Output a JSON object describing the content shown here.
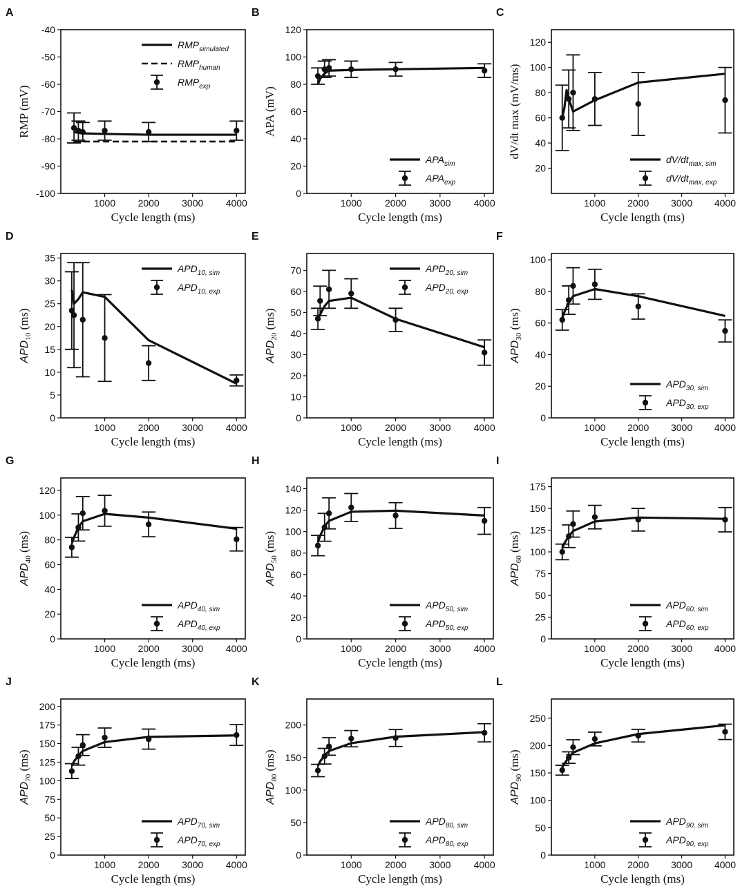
{
  "figure": {
    "title": "",
    "panel_count": 12
  },
  "chart_data": [
    {
      "panel": "A",
      "type": "line",
      "xlabel": "Cycle length (ms)",
      "ylabel": "RMP (mV)",
      "xlim": [
        0,
        4200
      ],
      "ylim": [
        -100,
        -40
      ],
      "xticks": [
        1000,
        2000,
        3000,
        4000
      ],
      "yticks": [
        -100,
        -90,
        -80,
        -70,
        -60,
        -50,
        -40
      ],
      "legend_position": "top-right",
      "series": [
        {
          "name": "RMP_simulated",
          "legend_main": "RMP",
          "legend_sub": "simulated",
          "style": "solid",
          "x": [
            300,
            400,
            500,
            1000,
            2000,
            4000
          ],
          "y": [
            -77.5,
            -77.8,
            -78.0,
            -78.2,
            -78.5,
            -78.5
          ]
        },
        {
          "name": "RMP_human",
          "legend_main": "RMP",
          "legend_sub": "human",
          "style": "dashed",
          "x": [
            300,
            4000
          ],
          "y": [
            -81,
            -81
          ]
        },
        {
          "name": "RMP_exp",
          "legend_main": "RMP",
          "legend_sub": "exp",
          "style": "errorbar",
          "x": [
            300,
            400,
            500,
            1000,
            2000,
            4000
          ],
          "y": [
            -76,
            -77,
            -77.5,
            -77,
            -77.5,
            -77
          ],
          "err": [
            5.5,
            3.5,
            3.5,
            3.5,
            3.5,
            3.5
          ]
        }
      ]
    },
    {
      "panel": "B",
      "type": "line",
      "xlabel": "Cycle length (ms)",
      "ylabel": "APA (mV)",
      "xlim": [
        0,
        4200
      ],
      "ylim": [
        0,
        120
      ],
      "xticks": [
        1000,
        2000,
        3000,
        4000
      ],
      "yticks": [
        0,
        20,
        40,
        60,
        80,
        100,
        120
      ],
      "legend_position": "bottom-right",
      "series": [
        {
          "name": "APA_sim",
          "legend_main": "APA",
          "legend_sub": "sim",
          "style": "solid",
          "x": [
            250,
            300,
            400,
            500,
            1000,
            2000,
            4000
          ],
          "y": [
            80,
            84,
            88,
            90,
            90.5,
            91,
            92
          ]
        },
        {
          "name": "APA_exp",
          "legend_main": "APA",
          "legend_sub": "exp",
          "style": "errorbar",
          "x": [
            250,
            400,
            500,
            1000,
            2000,
            4000
          ],
          "y": [
            86,
            91,
            92,
            91,
            91,
            90
          ],
          "err": [
            6,
            6,
            6,
            6,
            5,
            5
          ]
        }
      ]
    },
    {
      "panel": "C",
      "type": "line",
      "xlabel": "Cycle length (ms)",
      "ylabel": "dV/dt max (mV/ms)",
      "xlim": [
        0,
        4200
      ],
      "ylim": [
        0,
        130
      ],
      "xticks": [
        1000,
        2000,
        3000,
        4000
      ],
      "yticks": [
        20,
        40,
        60,
        80,
        100,
        120
      ],
      "legend_position": "bottom-right",
      "series": [
        {
          "name": "dV/dt max,sim",
          "legend_main": "dV/dt",
          "legend_sub": "max, sim",
          "style": "solid",
          "x": [
            250,
            300,
            350,
            400,
            500,
            1000,
            2000,
            4000
          ],
          "y": [
            60,
            68,
            82,
            75,
            65,
            74,
            88,
            95
          ]
        },
        {
          "name": "dV/dt max,exp",
          "legend_main": "dV/dt",
          "legend_sub": "max, exp",
          "style": "errorbar",
          "x": [
            250,
            400,
            500,
            1000,
            2000,
            4000
          ],
          "y": [
            60,
            75,
            80,
            75,
            71,
            74
          ],
          "err": [
            26,
            23,
            30,
            21,
            25,
            26
          ]
        }
      ]
    },
    {
      "panel": "D",
      "type": "line",
      "xlabel": "Cycle length (ms)",
      "ylabel": "APD10 (ms)",
      "ylabel_main": "APD",
      "ylabel_sub": "10",
      "xlim": [
        0,
        4200
      ],
      "ylim": [
        0,
        36
      ],
      "xticks": [
        1000,
        2000,
        3000,
        4000
      ],
      "yticks": [
        0,
        5,
        10,
        15,
        20,
        25,
        30,
        35
      ],
      "legend_position": "top-right",
      "series": [
        {
          "name": "APD10,sim",
          "legend_main": "APD",
          "legend_sub": "10, sim",
          "style": "solid",
          "x": [
            250,
            300,
            400,
            500,
            1000,
            2000,
            4000
          ],
          "y": [
            28,
            25,
            26,
            27.5,
            26.5,
            17,
            7.5
          ]
        },
        {
          "name": "APD10,exp",
          "legend_main": "APD",
          "legend_sub": "10, exp",
          "style": "errorbar",
          "x": [
            250,
            300,
            500,
            1000,
            2000,
            4000
          ],
          "y": [
            23.5,
            22.5,
            21.5,
            17.5,
            12,
            8.2
          ],
          "err": [
            8.5,
            11.5,
            12.5,
            9.5,
            3.8,
            1.2
          ]
        }
      ]
    },
    {
      "panel": "E",
      "type": "line",
      "xlabel": "Cycle length (ms)",
      "ylabel": "APD20 (ms)",
      "ylabel_main": "APD",
      "ylabel_sub": "20",
      "xlim": [
        0,
        4200
      ],
      "ylim": [
        0,
        78
      ],
      "xticks": [
        1000,
        2000,
        3000,
        4000
      ],
      "yticks": [
        0,
        10,
        20,
        30,
        40,
        50,
        60,
        70
      ],
      "legend_position": "top-right",
      "series": [
        {
          "name": "APD20,sim",
          "legend_main": "APD",
          "legend_sub": "20, sim",
          "style": "solid",
          "x": [
            250,
            300,
            400,
            500,
            1000,
            2000,
            4000
          ],
          "y": [
            47,
            49,
            53,
            55.5,
            57,
            47,
            33.5
          ]
        },
        {
          "name": "APD20,exp",
          "legend_main": "APD",
          "legend_sub": "20, exp",
          "style": "errorbar",
          "x": [
            250,
            300,
            500,
            1000,
            2000,
            4000
          ],
          "y": [
            47,
            55.5,
            61,
            59,
            46.5,
            31
          ],
          "err": [
            5,
            7,
            9,
            7,
            5.5,
            6
          ]
        }
      ]
    },
    {
      "panel": "F",
      "type": "line",
      "xlabel": "Cycle length (ms)",
      "ylabel": "APD30 (ms)",
      "ylabel_main": "APD",
      "ylabel_sub": "30",
      "xlim": [
        0,
        4200
      ],
      "ylim": [
        0,
        104
      ],
      "xticks": [
        1000,
        2000,
        3000,
        4000
      ],
      "yticks": [
        0,
        20,
        40,
        60,
        80,
        100
      ],
      "legend_position": "bottom-right",
      "series": [
        {
          "name": "APD30,sim",
          "legend_main": "APD",
          "legend_sub": "30, sim",
          "style": "solid",
          "x": [
            250,
            300,
            400,
            500,
            1000,
            2000,
            4000
          ],
          "y": [
            63,
            67,
            73,
            77,
            81.5,
            77,
            64.5
          ]
        },
        {
          "name": "APD30,exp",
          "legend_main": "APD",
          "legend_sub": "30, exp",
          "style": "errorbar",
          "x": [
            250,
            400,
            500,
            1000,
            2000,
            4000
          ],
          "y": [
            62,
            74.5,
            83.5,
            84.5,
            70.5,
            55
          ],
          "err": [
            6.5,
            9,
            11.5,
            9.5,
            8,
            7
          ]
        }
      ]
    },
    {
      "panel": "G",
      "type": "line",
      "xlabel": "Cycle length (ms)",
      "ylabel": "APD40 (ms)",
      "ylabel_main": "APD",
      "ylabel_sub": "40",
      "xlim": [
        0,
        4200
      ],
      "ylim": [
        0,
        130
      ],
      "xticks": [
        1000,
        2000,
        3000,
        4000
      ],
      "yticks": [
        0,
        20,
        40,
        60,
        80,
        100,
        120
      ],
      "legend_position": "bottom-right",
      "series": [
        {
          "name": "APD40,sim",
          "legend_main": "APD",
          "legend_sub": "40, sim",
          "style": "solid",
          "x": [
            250,
            300,
            400,
            500,
            1000,
            2000,
            4000
          ],
          "y": [
            77,
            82,
            90,
            95,
            101,
            98,
            89
          ]
        },
        {
          "name": "APD40,exp",
          "legend_main": "APD",
          "legend_sub": "40, exp",
          "style": "errorbar",
          "x": [
            250,
            400,
            500,
            1000,
            2000,
            4000
          ],
          "y": [
            74,
            90,
            101.5,
            103.5,
            92.5,
            80.5
          ],
          "err": [
            8,
            11,
            13.5,
            12.5,
            10,
            9.5
          ]
        }
      ]
    },
    {
      "panel": "H",
      "type": "line",
      "xlabel": "Cycle length (ms)",
      "ylabel": "APD50 (ms)",
      "ylabel_main": "APD",
      "ylabel_sub": "50",
      "xlim": [
        0,
        4200
      ],
      "ylim": [
        0,
        150
      ],
      "xticks": [
        1000,
        2000,
        3000,
        4000
      ],
      "yticks": [
        0,
        20,
        40,
        60,
        80,
        100,
        120,
        140
      ],
      "legend_position": "bottom-right",
      "series": [
        {
          "name": "APD50,sim",
          "legend_main": "APD",
          "legend_sub": "50, sim",
          "style": "solid",
          "x": [
            250,
            300,
            400,
            500,
            1000,
            2000,
            4000
          ],
          "y": [
            90,
            96,
            105,
            110,
            118.5,
            119.5,
            115
          ]
        },
        {
          "name": "APD50,exp",
          "legend_main": "APD",
          "legend_sub": "50, exp",
          "style": "errorbar",
          "x": [
            250,
            400,
            500,
            1000,
            2000,
            4000
          ],
          "y": [
            87,
            104,
            117,
            122.5,
            115,
            110
          ],
          "err": [
            9.5,
            13,
            14.5,
            13,
            12,
            12.5
          ]
        }
      ]
    },
    {
      "panel": "I",
      "type": "line",
      "xlabel": "Cycle length (ms)",
      "ylabel": "APD60 (ms)",
      "ylabel_main": "APD",
      "ylabel_sub": "60",
      "xlim": [
        0,
        4200
      ],
      "ylim": [
        0,
        185
      ],
      "xticks": [
        1000,
        2000,
        3000,
        4000
      ],
      "yticks": [
        0,
        25,
        50,
        75,
        100,
        125,
        150,
        175
      ],
      "legend_position": "bottom-right",
      "series": [
        {
          "name": "APD60,sim",
          "legend_main": "APD",
          "legend_sub": "60, sim",
          "style": "solid",
          "x": [
            250,
            300,
            400,
            500,
            1000,
            2000,
            4000
          ],
          "y": [
            104,
            110,
            118,
            124,
            135,
            139.5,
            138
          ]
        },
        {
          "name": "APD60,exp",
          "legend_main": "APD",
          "legend_sub": "60, exp",
          "style": "errorbar",
          "x": [
            250,
            400,
            500,
            1000,
            2000,
            4000
          ],
          "y": [
            100,
            118,
            132,
            140,
            137,
            137
          ],
          "err": [
            9,
            13,
            15,
            13.5,
            13,
            14
          ]
        }
      ]
    },
    {
      "panel": "J",
      "type": "line",
      "xlabel": "Cycle length (ms)",
      "ylabel": "APD70 (ms)",
      "ylabel_main": "APD",
      "ylabel_sub": "70",
      "xlim": [
        0,
        4200
      ],
      "ylim": [
        0,
        210
      ],
      "xticks": [
        1000,
        2000,
        3000,
        4000
      ],
      "yticks": [
        0,
        25,
        50,
        75,
        100,
        125,
        150,
        175,
        200
      ],
      "legend_position": "bottom-right",
      "series": [
        {
          "name": "APD70,sim",
          "legend_main": "APD",
          "legend_sub": "70, sim",
          "style": "solid",
          "x": [
            250,
            300,
            400,
            500,
            1000,
            2000,
            4000
          ],
          "y": [
            120,
            126,
            134,
            140,
            152,
            159,
            161
          ]
        },
        {
          "name": "APD70,exp",
          "legend_main": "APD",
          "legend_sub": "70, exp",
          "style": "errorbar",
          "x": [
            250,
            400,
            500,
            1000,
            2000,
            4000
          ],
          "y": [
            113,
            133,
            148,
            158,
            156,
            161.5
          ],
          "err": [
            10,
            12,
            14,
            13,
            13.5,
            14
          ]
        }
      ]
    },
    {
      "panel": "K",
      "type": "line",
      "xlabel": "Cycle length (ms)",
      "ylabel": "APD80 (ms)",
      "ylabel_main": "APD",
      "ylabel_sub": "80",
      "xlim": [
        0,
        4200
      ],
      "ylim": [
        0,
        240
      ],
      "xticks": [
        1000,
        2000,
        3000,
        4000
      ],
      "yticks": [
        0,
        50,
        100,
        150,
        200
      ],
      "legend_position": "bottom-right",
      "series": [
        {
          "name": "APD80,sim",
          "legend_main": "APD",
          "legend_sub": "80, sim",
          "style": "solid",
          "x": [
            250,
            300,
            400,
            500,
            1000,
            2000,
            4000
          ],
          "y": [
            137,
            144,
            153,
            160,
            172,
            182,
            189
          ]
        },
        {
          "name": "APD80,exp",
          "legend_main": "APD",
          "legend_sub": "80, exp",
          "style": "errorbar",
          "x": [
            250,
            400,
            500,
            1000,
            2000,
            4000
          ],
          "y": [
            130,
            152,
            167,
            179,
            180,
            188
          ],
          "err": [
            9.5,
            12,
            13.5,
            12.5,
            13,
            14
          ]
        }
      ]
    },
    {
      "panel": "L",
      "type": "line",
      "xlabel": "Cycle length (ms)",
      "ylabel": "APD90 (ms)",
      "ylabel_main": "APD",
      "ylabel_sub": "90",
      "xlim": [
        0,
        4200
      ],
      "ylim": [
        0,
        285
      ],
      "xticks": [
        1000,
        2000,
        3000,
        4000
      ],
      "yticks": [
        0,
        50,
        100,
        150,
        200,
        250
      ],
      "legend_position": "bottom-right",
      "series": [
        {
          "name": "APD90,sim",
          "legend_main": "APD",
          "legend_sub": "90, sim",
          "style": "solid",
          "x": [
            250,
            300,
            400,
            500,
            1000,
            2000,
            4000
          ],
          "y": [
            160,
            167,
            178,
            187,
            204,
            221,
            237
          ]
        },
        {
          "name": "APD90,exp",
          "legend_main": "APD",
          "legend_sub": "90, exp",
          "style": "errorbar",
          "x": [
            250,
            400,
            500,
            1000,
            2000,
            4000
          ],
          "y": [
            155,
            178,
            197,
            212,
            218,
            225
          ],
          "err": [
            9,
            10.5,
            13.5,
            12.5,
            11.5,
            14
          ]
        }
      ]
    }
  ]
}
